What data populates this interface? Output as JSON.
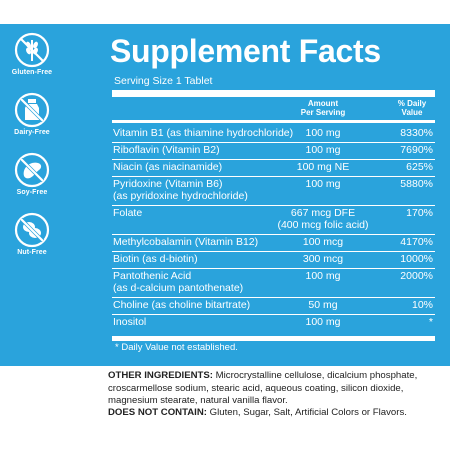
{
  "badges": [
    {
      "icon": "gluten-free-wheat-icon",
      "label": "Gluten-Free"
    },
    {
      "icon": "dairy-free-bottle-icon",
      "label": "Dairy-Free"
    },
    {
      "icon": "soy-free-bean-icon",
      "label": "Soy-Free"
    },
    {
      "icon": "nut-free-nut-icon",
      "label": "Nut-Free"
    }
  ],
  "facts": {
    "title": "Supplement Facts",
    "serving": "Serving Size 1 Tablet",
    "amount_header_1": "Amount",
    "amount_header_2": "Per Serving",
    "dv_header_1": "% Daily",
    "dv_header_2": "Value",
    "rows": [
      {
        "name": "Vitamin B1 (as thiamine hydrochloride)",
        "name2": "",
        "amount": "100 mg",
        "amount2": "",
        "dv": "8330%"
      },
      {
        "name": "Riboflavin (Vitamin B2)",
        "name2": "",
        "amount": "100 mg",
        "amount2": "",
        "dv": "7690%"
      },
      {
        "name": "Niacin (as niacinamide)",
        "name2": "",
        "amount": "100 mg NE",
        "amount2": "",
        "dv": "625%"
      },
      {
        "name": "Pyridoxine (Vitamin B6)",
        "name2": "(as pyridoxine hydrochloride)",
        "amount": "100 mg",
        "amount2": "",
        "dv": "5880%"
      },
      {
        "name": "Folate",
        "name2": "",
        "amount": "667 mcg DFE",
        "amount2": "(400 mcg folic acid)",
        "dv": "170%"
      },
      {
        "name": "Methylcobalamin (Vitamin B12)",
        "name2": "",
        "amount": "100 mcg",
        "amount2": "",
        "dv": "4170%"
      },
      {
        "name": "Biotin (as d-biotin)",
        "name2": "",
        "amount": "300 mcg",
        "amount2": "",
        "dv": "1000%"
      },
      {
        "name": "Pantothenic Acid",
        "name2": "(as d-calcium pantothenate)",
        "amount": "100 mg",
        "amount2": "",
        "dv": "2000%"
      },
      {
        "name": "Choline (as choline bitartrate)",
        "name2": "",
        "amount": "50 mg",
        "amount2": "",
        "dv": "10%"
      },
      {
        "name": "Inositol",
        "name2": "",
        "amount": "100 mg",
        "amount2": "",
        "dv": "*"
      }
    ],
    "footnote": "* Daily Value not established."
  },
  "other": {
    "label": "OTHER INGREDIENTS:",
    "text": " Microcrystalline cellulose, dicalcium phosphate, croscarmellose sodium, stearic acid, aqueous coating, silicon dioxide, magnesium stearate, natural vanilla flavor.",
    "dnc_label": "DOES NOT CONTAIN:",
    "dnc_text": " Gluten, Sugar, Salt, Artificial Colors or Flavors."
  }
}
